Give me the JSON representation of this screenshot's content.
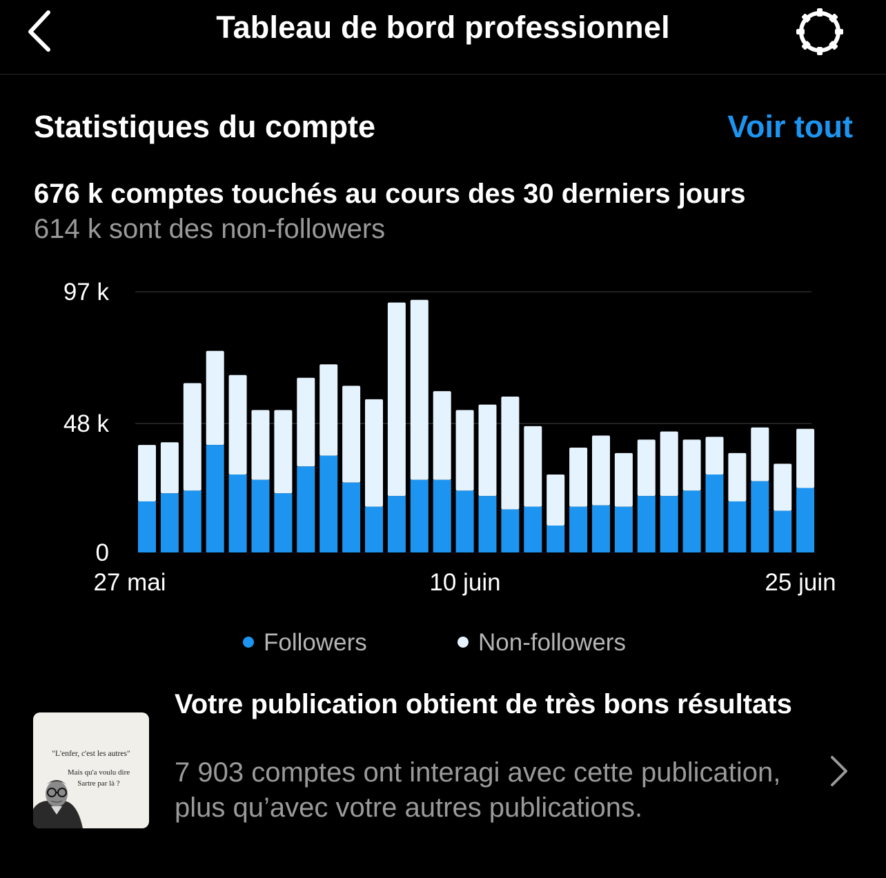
{
  "header": {
    "title": "Tableau de bord professionnel"
  },
  "stats": {
    "section_title": "Statistiques du compte",
    "see_all_label": "Voir tout",
    "headline": "676 k comptes touchés au cours des 30 derniers jours",
    "subline": "614 k sont des non-followers"
  },
  "legend": {
    "followers": "Followers",
    "non_followers": "Non-followers"
  },
  "colors": {
    "followers": "#1d95f0",
    "non_followers": "#e5f3fe",
    "accent": "#1d95f0"
  },
  "chart_data": {
    "type": "bar",
    "stacked": true,
    "y_ticks": [
      "97 k",
      "48 k",
      "0"
    ],
    "y_tick_values": [
      97,
      48,
      0
    ],
    "ylim": [
      0,
      97
    ],
    "unit": "k",
    "x_tick_labels": [
      "27 mai",
      "10 juin",
      "25 juin"
    ],
    "categories": [
      "27 mai",
      "28 mai",
      "29 mai",
      "30 mai",
      "31 mai",
      "1 juin",
      "2 juin",
      "3 juin",
      "4 juin",
      "5 juin",
      "6 juin",
      "7 juin",
      "8 juin",
      "9 juin",
      "10 juin",
      "11 juin",
      "12 juin",
      "13 juin",
      "14 juin",
      "15 juin",
      "16 juin",
      "17 juin",
      "18 juin",
      "19 juin",
      "20 juin",
      "21 juin",
      "22 juin",
      "23 juin",
      "24 juin",
      "25 juin"
    ],
    "series": [
      {
        "name": "Followers",
        "values": [
          19,
          22,
          23,
          40,
          29,
          27,
          22,
          32,
          36,
          26,
          17,
          21,
          27,
          27,
          23,
          21,
          16,
          17,
          10,
          17,
          17.5,
          17,
          21,
          21,
          23,
          29,
          19,
          26.5,
          15.5,
          24
        ]
      },
      {
        "name": "Non-followers",
        "values": [
          21,
          19,
          40,
          35,
          37,
          26,
          31,
          33,
          34,
          36,
          40,
          72,
          67,
          33,
          30,
          34,
          42,
          30,
          19,
          22,
          26,
          20,
          21,
          24,
          19,
          14,
          18,
          20,
          17.5,
          22
        ]
      }
    ],
    "grid": true,
    "legend_position": "bottom"
  },
  "post": {
    "title": "Votre publication obtient de très bons résultats",
    "description": "7 903 comptes ont interagi avec cette publication, plus qu’avec votre autres publications.",
    "thumbnail": {
      "quote": "\"L'enfer, c'est les autres\"",
      "question_line1": "Mais qu'a voulu dire",
      "question_line2": "Sartre par là ?"
    }
  }
}
